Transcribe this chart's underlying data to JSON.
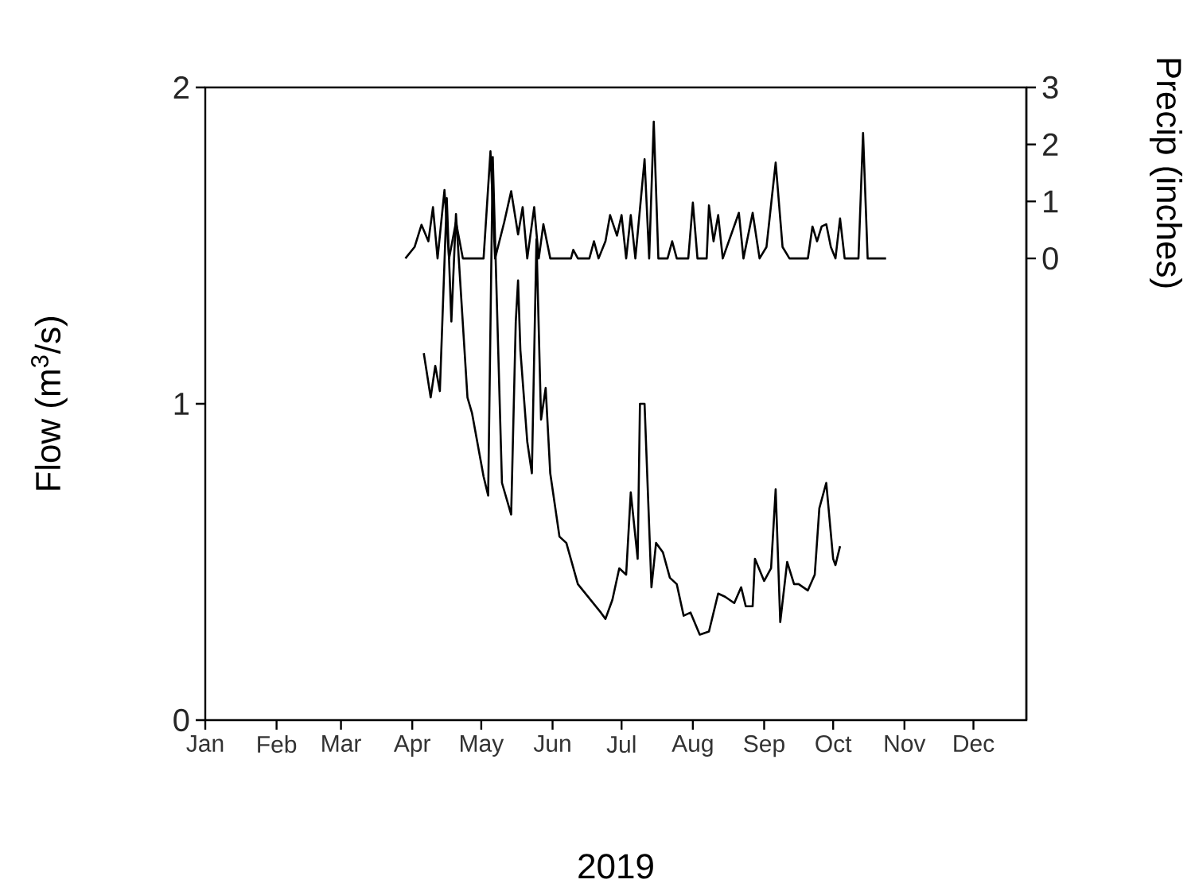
{
  "chart_data": {
    "type": "line",
    "xlabel": "2019",
    "ylabel": "Flow (m$^{3}$/s)",
    "y2label": "Precip (inches)",
    "xlim": [
      "2019-01-01",
      "2019-12-24"
    ],
    "xticks": [
      {
        "value": "2019-01-01",
        "label": "Jan"
      },
      {
        "value": "2019-02-01",
        "label": "Feb"
      },
      {
        "value": "2019-03-01",
        "label": "Mar"
      },
      {
        "value": "2019-04-01",
        "label": "Apr"
      },
      {
        "value": "2019-05-01",
        "label": "May"
      },
      {
        "value": "2019-06-01",
        "label": "Jun"
      },
      {
        "value": "2019-07-01",
        "label": "Jul"
      },
      {
        "value": "2019-08-01",
        "label": "Aug"
      },
      {
        "value": "2019-09-01",
        "label": "Sep"
      },
      {
        "value": "2019-10-01",
        "label": "Oct"
      },
      {
        "value": "2019-11-01",
        "label": "Nov"
      },
      {
        "value": "2019-12-01",
        "label": "Dec"
      }
    ],
    "ylim": [
      0,
      2
    ],
    "yticks": [
      0,
      1,
      2
    ],
    "y2lim": [
      -8.1,
      3
    ],
    "y2ticks": [
      0,
      1,
      2,
      3
    ],
    "series": [
      {
        "color": "#000000",
        "x": [
          "2019-04-06",
          "2019-04-09",
          "2019-04-11",
          "2019-04-13",
          "2019-04-16",
          "2019-04-18",
          "2019-04-20",
          "2019-04-25",
          "2019-04-27",
          "2019-05-02",
          "2019-05-04",
          "2019-05-06",
          "2019-05-10",
          "2019-05-14",
          "2019-05-16",
          "2019-05-17",
          "2019-05-18",
          "2019-05-21",
          "2019-05-23",
          "2019-05-25",
          "2019-05-27",
          "2019-05-29",
          "2019-05-31",
          "2019-06-04",
          "2019-06-07",
          "2019-06-12",
          "2019-06-22",
          "2019-06-24",
          "2019-06-27",
          "2019-06-30",
          "2019-07-03",
          "2019-07-05",
          "2019-07-08",
          "2019-07-09",
          "2019-07-11",
          "2019-07-14",
          "2019-07-16",
          "2019-07-19",
          "2019-07-22",
          "2019-07-25",
          "2019-07-28",
          "2019-07-31",
          "2019-08-04",
          "2019-08-08",
          "2019-08-12",
          "2019-08-15",
          "2019-08-19",
          "2019-08-22",
          "2019-08-24",
          "2019-08-27",
          "2019-08-28",
          "2019-09-01",
          "2019-09-04",
          "2019-09-06",
          "2019-09-08",
          "2019-09-11",
          "2019-09-14",
          "2019-09-16",
          "2019-09-20",
          "2019-09-23",
          "2019-09-25",
          "2019-09-28",
          "2019-10-01",
          "2019-10-02",
          "2019-10-04"
        ],
        "values": [
          1.16,
          1.02,
          1.12,
          1.04,
          1.65,
          1.26,
          1.6,
          1.02,
          0.97,
          0.77,
          0.71,
          1.78,
          0.75,
          0.65,
          1.26,
          1.39,
          1.17,
          0.88,
          0.78,
          1.52,
          0.95,
          1.05,
          0.78,
          0.58,
          0.56,
          0.43,
          0.34,
          0.32,
          0.38,
          0.48,
          0.46,
          0.72,
          0.51,
          1.0,
          1.0,
          0.42,
          0.56,
          0.53,
          0.45,
          0.43,
          0.33,
          0.34,
          0.27,
          0.28,
          0.4,
          0.39,
          0.37,
          0.42,
          0.36,
          0.36,
          0.51,
          0.44,
          0.48,
          0.73,
          0.31,
          0.5,
          0.43,
          0.43,
          0.41,
          0.46,
          0.67,
          0.75,
          0.51,
          0.49,
          0.55
        ]
      },
      {
        "color": "#000000",
        "axis": "y2",
        "x": [
          "2019-03-29",
          "2019-04-02",
          "2019-04-05",
          "2019-04-08",
          "2019-04-10",
          "2019-04-12",
          "2019-04-15",
          "2019-04-17",
          "2019-04-20",
          "2019-04-23",
          "2019-05-02",
          "2019-05-05",
          "2019-05-07",
          "2019-05-11",
          "2019-05-14",
          "2019-05-17",
          "2019-05-19",
          "2019-05-21",
          "2019-05-24",
          "2019-05-26",
          "2019-05-28",
          "2019-05-31",
          "2019-06-09",
          "2019-06-10",
          "2019-06-12",
          "2019-06-17",
          "2019-06-19",
          "2019-06-21",
          "2019-06-24",
          "2019-06-26",
          "2019-06-29",
          "2019-07-01",
          "2019-07-03",
          "2019-07-05",
          "2019-07-07",
          "2019-07-11",
          "2019-07-13",
          "2019-07-15",
          "2019-07-17",
          "2019-07-21",
          "2019-07-23",
          "2019-07-25",
          "2019-07-30",
          "2019-08-01",
          "2019-08-03",
          "2019-08-07",
          "2019-08-08",
          "2019-08-10",
          "2019-08-12",
          "2019-08-14",
          "2019-08-21",
          "2019-08-23",
          "2019-08-27",
          "2019-08-30",
          "2019-09-02",
          "2019-09-06",
          "2019-09-09",
          "2019-09-12",
          "2019-09-20",
          "2019-09-22",
          "2019-09-24",
          "2019-09-26",
          "2019-09-28",
          "2019-09-30",
          "2019-10-02",
          "2019-10-04",
          "2019-10-06",
          "2019-10-12",
          "2019-10-14",
          "2019-10-16",
          "2019-10-24"
        ],
        "values": [
          0,
          0.2,
          0.59,
          0.3,
          0.9,
          0,
          1.2,
          0,
          0.64,
          0,
          0,
          1.88,
          0,
          0.64,
          1.18,
          0.42,
          0.9,
          0,
          0.9,
          0,
          0.6,
          0,
          0,
          0.15,
          0,
          0,
          0.3,
          0,
          0.3,
          0.76,
          0.4,
          0.76,
          0,
          0.76,
          0,
          1.74,
          0,
          2.4,
          0,
          0,
          0.3,
          0,
          0,
          0.98,
          0,
          0,
          0.93,
          0.3,
          0.76,
          0,
          0.8,
          0,
          0.8,
          0,
          0.2,
          1.68,
          0.2,
          0,
          0,
          0.56,
          0.3,
          0.56,
          0.6,
          0.2,
          0,
          0.7,
          0,
          0,
          2.2,
          0,
          0
        ]
      }
    ]
  }
}
